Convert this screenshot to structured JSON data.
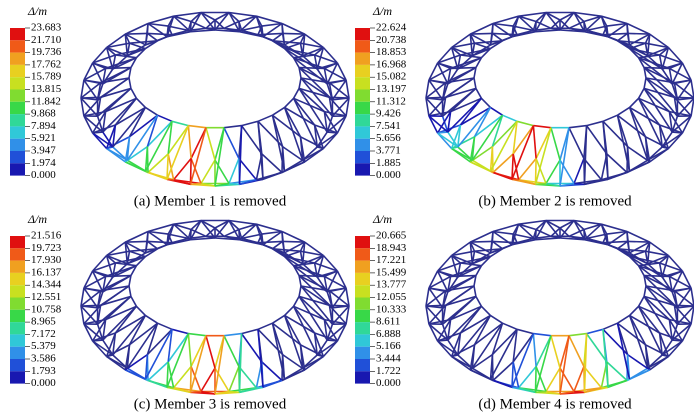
{
  "panels": [
    {
      "legend_title": "Δ/m",
      "legend_labels": [
        "23.683",
        "21.710",
        "19.736",
        "17.762",
        "15.789",
        "13.815",
        "11.842",
        "9.868",
        "7.894",
        "5.921",
        "3.947",
        "1.974",
        "0.000"
      ],
      "caption": "(a) Member 1 is removed"
    },
    {
      "legend_title": "Δ/m",
      "legend_labels": [
        "22.624",
        "20.738",
        "18.853",
        "16.968",
        "15.082",
        "13.197",
        "11.312",
        "9.426",
        "7.541",
        "5.656",
        "3.771",
        "1.885",
        "0.000"
      ],
      "caption": "(b) Member 2 is removed"
    },
    {
      "legend_title": "Δ/m",
      "legend_labels": [
        "21.516",
        "19.723",
        "17.930",
        "16.137",
        "14.344",
        "12.551",
        "10.758",
        "8.965",
        "7.172",
        "5.379",
        "3.586",
        "1.793",
        "0.000"
      ],
      "caption": "(c) Member 3 is removed"
    },
    {
      "legend_title": "Δ/m",
      "legend_labels": [
        "20.665",
        "18.943",
        "17.221",
        "15.499",
        "13.777",
        "12.055",
        "10.333",
        "8.611",
        "6.888",
        "5.166",
        "3.444",
        "1.722",
        "0.000"
      ],
      "caption": "(d) Member 4 is removed"
    }
  ]
}
